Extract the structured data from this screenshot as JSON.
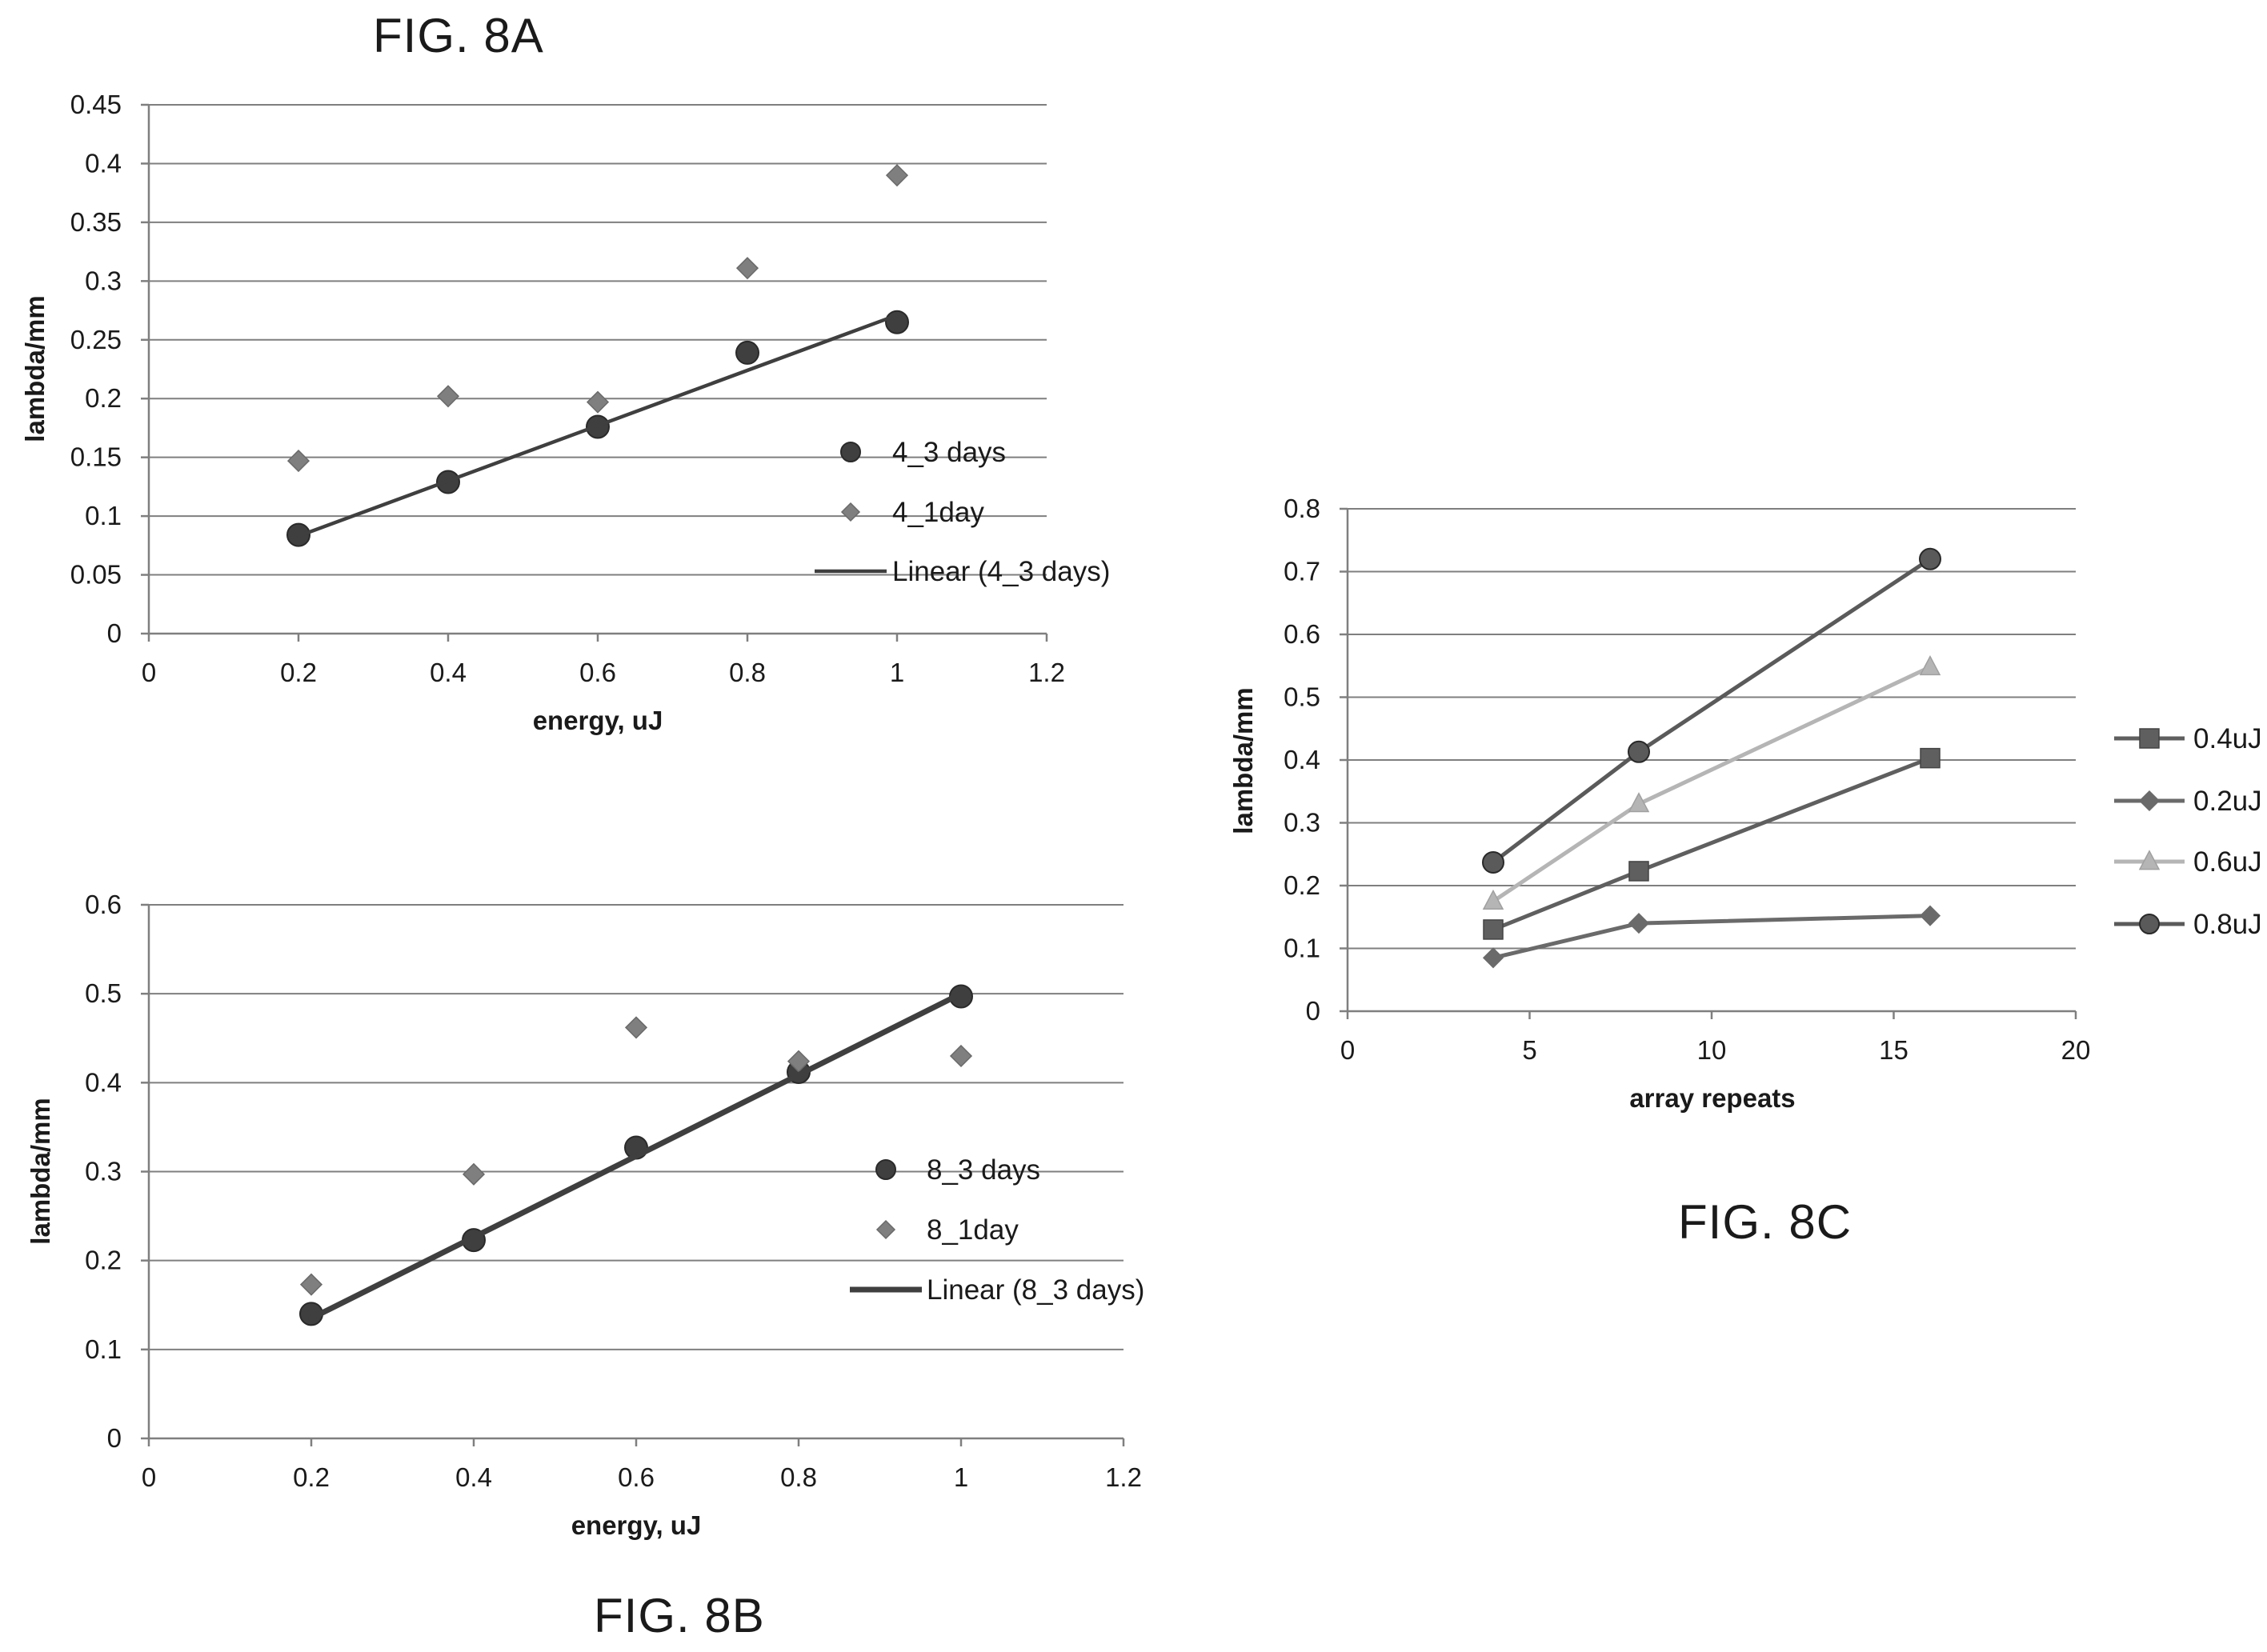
{
  "captions": {
    "a": "FIG. 8A",
    "b": "FIG. 8B",
    "c": "FIG. 8C"
  },
  "chart_data": [
    {
      "id": "a",
      "type": "scatter",
      "xlabel": "energy, uJ",
      "ylabel": "lambda/mm",
      "xlim": [
        0,
        1.2
      ],
      "ylim": [
        0,
        0.45
      ],
      "xticks": [
        "0",
        "0.2",
        "0.4",
        "0.6",
        "0.8",
        "1",
        "1.2"
      ],
      "yticks": [
        "0",
        "0.05",
        "0.1",
        "0.15",
        "0.2",
        "0.25",
        "0.3",
        "0.35",
        "0.4",
        "0.45"
      ],
      "grid": true,
      "legend_position": "right",
      "series": [
        {
          "name": "4_3 days",
          "marker": "circle",
          "color": "#3f3f3f",
          "x": [
            0.2,
            0.4,
            0.6,
            0.8,
            1.0
          ],
          "y": [
            0.084,
            0.129,
            0.176,
            0.239,
            0.265
          ]
        },
        {
          "name": "4_1day",
          "marker": "diamond",
          "color": "#7f7f7f",
          "x": [
            0.2,
            0.4,
            0.6,
            0.8,
            1.0
          ],
          "y": [
            0.147,
            0.202,
            0.197,
            0.311,
            0.39
          ]
        },
        {
          "name": "Linear (4_3 days)",
          "kind": "trendline",
          "color": "#3f3f3f",
          "x": [
            0.2,
            1.0
          ],
          "y": [
            0.083,
            0.271
          ]
        }
      ]
    },
    {
      "id": "b",
      "type": "scatter",
      "xlabel": "energy, uJ",
      "ylabel": "lambda/mm",
      "xlim": [
        0,
        1.2
      ],
      "ylim": [
        0,
        0.6
      ],
      "xticks": [
        "0",
        "0.2",
        "0.4",
        "0.6",
        "0.8",
        "1",
        "1.2"
      ],
      "yticks": [
        "0",
        "0.1",
        "0.2",
        "0.3",
        "0.4",
        "0.5",
        "0.6"
      ],
      "grid": true,
      "legend_position": "right",
      "series": [
        {
          "name": "8_3 days",
          "marker": "circle",
          "color": "#3f3f3f",
          "x": [
            0.2,
            0.4,
            0.6,
            0.8,
            1.0
          ],
          "y": [
            0.14,
            0.223,
            0.327,
            0.412,
            0.497
          ]
        },
        {
          "name": "8_1day",
          "marker": "diamond",
          "color": "#7f7f7f",
          "x": [
            0.2,
            0.4,
            0.6,
            0.8,
            1.0
          ],
          "y": [
            0.173,
            0.297,
            0.462,
            0.424,
            0.43
          ]
        },
        {
          "name": "Linear (8_3 days)",
          "kind": "trendline",
          "color": "#3f3f3f",
          "x": [
            0.2,
            1.0
          ],
          "y": [
            0.135,
            0.5
          ]
        }
      ]
    },
    {
      "id": "c",
      "type": "line",
      "xlabel": "array repeats",
      "ylabel": "lambda/mm",
      "xlim": [
        0,
        20
      ],
      "ylim": [
        0,
        0.8
      ],
      "xticks": [
        "0",
        "5",
        "10",
        "15",
        "20"
      ],
      "yticks": [
        "0",
        "0.1",
        "0.2",
        "0.3",
        "0.4",
        "0.5",
        "0.6",
        "0.7",
        "0.8"
      ],
      "grid": true,
      "legend_position": "right",
      "series": [
        {
          "name": "0.4uJ",
          "marker": "square",
          "color": "#5f5f5f",
          "x": [
            4,
            8,
            16
          ],
          "y": [
            0.13,
            0.223,
            0.403
          ]
        },
        {
          "name": "0.2uJ",
          "marker": "diamond",
          "color": "#6a6a6a",
          "x": [
            4,
            8,
            16
          ],
          "y": [
            0.085,
            0.14,
            0.152
          ]
        },
        {
          "name": "0.6uJ",
          "marker": "triangle",
          "color": "#b5b5b5",
          "x": [
            4,
            8,
            16
          ],
          "y": [
            0.175,
            0.33,
            0.548
          ]
        },
        {
          "name": "0.8uJ",
          "marker": "circle",
          "color": "#5a5a5a",
          "x": [
            4,
            8,
            16
          ],
          "y": [
            0.237,
            0.413,
            0.72
          ]
        }
      ]
    }
  ]
}
